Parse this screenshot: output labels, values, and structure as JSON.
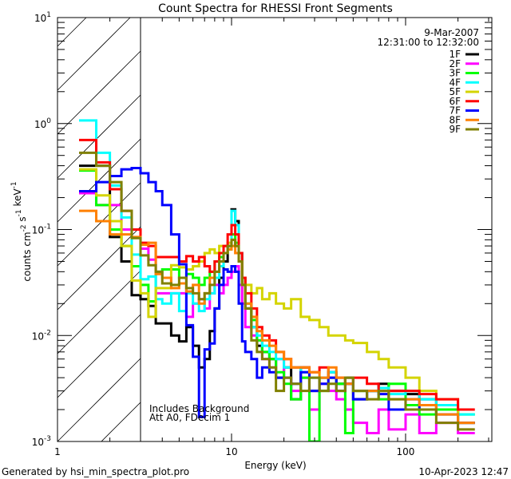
{
  "chart_data": {
    "type": "line",
    "step": true,
    "title": "Count Spectra for RHESSI Front Segments",
    "date_line": "9-Mar-2007",
    "time_line": "12:31:00 to 12:32:00",
    "xlabel": "Energy (keV)",
    "ylabel_parts": [
      {
        "text": "counts cm",
        "sup": "-2"
      },
      {
        "text": " s",
        "sup": "-1"
      },
      {
        "text": " keV",
        "sup": "-1"
      }
    ],
    "xscale": "log",
    "yscale": "log",
    "xlim": [
      1,
      313
    ],
    "ylim": [
      0.001,
      10
    ],
    "x_ticks": [
      {
        "value": 1,
        "label": "1"
      },
      {
        "value": 10,
        "label": "10"
      },
      {
        "value": 100,
        "label": "100"
      }
    ],
    "y_ticks": [
      {
        "value": 10,
        "base": "10",
        "exp": "1"
      },
      {
        "value": 1,
        "base": "10",
        "exp": "0"
      },
      {
        "value": 0.1,
        "base": "10",
        "exp": "-1"
      },
      {
        "value": 0.01,
        "base": "10",
        "exp": "-2"
      },
      {
        "value": 0.001,
        "base": "10",
        "exp": "-3"
      }
    ],
    "hatched_region_keV": [
      1,
      3
    ],
    "annotations": [
      "Includes Background",
      "Att A0, FDecim 1"
    ],
    "legend_position": "top-right",
    "energy_edges": [
      1.33,
      1.67,
      2.0,
      2.33,
      2.67,
      3.0,
      3.33,
      3.67,
      4.0,
      4.5,
      5.0,
      5.5,
      6.0,
      6.5,
      7.0,
      7.5,
      8.0,
      8.5,
      9.0,
      9.5,
      10.0,
      10.5,
      11.0,
      11.5,
      12,
      13,
      14,
      15,
      16.5,
      18,
      20,
      22,
      25,
      28,
      32,
      36,
      40,
      45,
      50,
      60,
      70,
      80,
      100,
      120,
      150,
      200,
      250
    ],
    "series": [
      {
        "name": "1F",
        "color": "#000000",
        "values": [
          0.4,
          0.4,
          0.085,
          0.05,
          0.024,
          0.022,
          0.019,
          0.013,
          0.013,
          0.01,
          0.0088,
          0.012,
          0.008,
          0.005,
          0.006,
          0.011,
          0.018,
          0.035,
          0.05,
          0.07,
          0.155,
          0.12,
          0.06,
          0.035,
          0.018,
          0.012,
          0.008,
          0.007,
          0.006,
          0.004,
          0.005,
          0.0025,
          0.005,
          0.003,
          0.004,
          0.0045,
          0.0035,
          0.004,
          0.0025,
          0.003,
          0.0035,
          0.003,
          0.0028,
          0.0025,
          0.002,
          0.0015
        ]
      },
      {
        "name": "2F",
        "color": "#ff00ff",
        "values": [
          0.22,
          0.17,
          0.17,
          0.1,
          0.1,
          0.066,
          0.052,
          0.025,
          0.025,
          0.025,
          0.025,
          0.015,
          0.02,
          0.022,
          0.018,
          0.025,
          0.03,
          0.025,
          0.03,
          0.035,
          0.04,
          0.045,
          0.03,
          0.02,
          0.012,
          0.01,
          0.009,
          0.006,
          0.005,
          0.006,
          0.004,
          0.003,
          0.004,
          0.002,
          0.0035,
          0.003,
          0.0025,
          0.002,
          0.0015,
          0.0012,
          0.002,
          0.0013,
          0.0018,
          0.0012,
          0.0015,
          0.0012
        ]
      },
      {
        "name": "3F",
        "color": "#00ff00",
        "values": [
          0.36,
          0.17,
          0.1,
          0.07,
          0.045,
          0.03,
          0.021,
          0.04,
          0.042,
          0.042,
          0.035,
          0.038,
          0.035,
          0.03,
          0.035,
          0.04,
          0.05,
          0.055,
          0.06,
          0.065,
          0.09,
          0.075,
          0.05,
          0.03,
          0.02,
          0.014,
          0.009,
          0.007,
          0.006,
          0.0045,
          0.0035,
          0.0025,
          0.004,
          0.001,
          0.003,
          0.004,
          0.0035,
          0.0012,
          0.003,
          0.003,
          0.0025,
          0.0035,
          0.0022,
          0.0018,
          0.002,
          0.0018
        ]
      },
      {
        "name": "4F",
        "color": "#00ffff",
        "values": [
          1.07,
          0.53,
          0.26,
          0.13,
          0.058,
          0.034,
          0.036,
          0.022,
          0.02,
          0.025,
          0.017,
          0.025,
          0.02,
          0.017,
          0.022,
          0.025,
          0.035,
          0.045,
          0.06,
          0.07,
          0.15,
          0.11,
          0.06,
          0.03,
          0.02,
          0.012,
          0.01,
          0.008,
          0.007,
          0.006,
          0.005,
          0.005,
          0.0045,
          0.004,
          0.004,
          0.0045,
          0.004,
          0.0035,
          0.003,
          0.003,
          0.0032,
          0.0028,
          0.003,
          0.0025,
          0.0022,
          0.0018
        ]
      },
      {
        "name": "5F",
        "color": "#d4d400",
        "values": [
          0.37,
          0.21,
          0.12,
          0.07,
          0.033,
          0.025,
          0.015,
          0.028,
          0.028,
          0.046,
          0.044,
          0.042,
          0.045,
          0.05,
          0.06,
          0.065,
          0.06,
          0.07,
          0.07,
          0.075,
          0.08,
          0.07,
          0.05,
          0.035,
          0.03,
          0.025,
          0.028,
          0.022,
          0.025,
          0.02,
          0.018,
          0.022,
          0.015,
          0.014,
          0.012,
          0.01,
          0.01,
          0.009,
          0.0085,
          0.007,
          0.006,
          0.005,
          0.004,
          0.003,
          0.0025,
          0.0015
        ]
      },
      {
        "name": "6F",
        "color": "#ff0000",
        "values": [
          0.7,
          0.43,
          0.24,
          0.15,
          0.1,
          0.075,
          0.07,
          0.055,
          0.055,
          0.055,
          0.05,
          0.056,
          0.05,
          0.055,
          0.045,
          0.04,
          0.05,
          0.06,
          0.07,
          0.09,
          0.11,
          0.09,
          0.06,
          0.035,
          0.025,
          0.018,
          0.012,
          0.01,
          0.009,
          0.007,
          0.006,
          0.005,
          0.005,
          0.0045,
          0.005,
          0.004,
          0.004,
          0.0035,
          0.004,
          0.0035,
          0.003,
          0.003,
          0.003,
          0.0028,
          0.0025,
          0.002
        ]
      },
      {
        "name": "7F",
        "color": "#0000ff",
        "values": [
          0.23,
          0.28,
          0.32,
          0.37,
          0.38,
          0.34,
          0.28,
          0.23,
          0.17,
          0.09,
          0.047,
          0.0125,
          0.0063,
          0.0017,
          0.0074,
          0.0084,
          0.018,
          0.03,
          0.042,
          0.04,
          0.045,
          0.04,
          0.02,
          0.0088,
          0.007,
          0.006,
          0.004,
          0.005,
          0.0045,
          0.004,
          0.004,
          0.0035,
          0.0045,
          0.003,
          0.0035,
          0.004,
          0.003,
          0.0035,
          0.0025,
          0.003,
          0.0028,
          0.002,
          0.0025,
          0.002,
          0.0018,
          0.0015
        ]
      },
      {
        "name": "8F",
        "color": "#ff8000",
        "values": [
          0.15,
          0.12,
          0.09,
          0.09,
          0.085,
          0.072,
          0.075,
          0.038,
          0.035,
          0.028,
          0.031,
          0.026,
          0.03,
          0.02,
          0.025,
          0.035,
          0.04,
          0.05,
          0.06,
          0.065,
          0.07,
          0.06,
          0.05,
          0.03,
          0.02,
          0.015,
          0.011,
          0.009,
          0.008,
          0.007,
          0.006,
          0.005,
          0.005,
          0.0045,
          0.004,
          0.005,
          0.004,
          0.0035,
          0.003,
          0.003,
          0.003,
          0.0025,
          0.0025,
          0.0022,
          0.0018,
          0.0015
        ]
      },
      {
        "name": "9F",
        "color": "#808000",
        "values": [
          0.53,
          0.4,
          0.28,
          0.15,
          0.083,
          0.057,
          0.046,
          0.04,
          0.031,
          0.03,
          0.035,
          0.028,
          0.025,
          0.022,
          0.025,
          0.03,
          0.04,
          0.05,
          0.06,
          0.07,
          0.08,
          0.07,
          0.05,
          0.03,
          0.018,
          0.009,
          0.007,
          0.006,
          0.005,
          0.003,
          0.004,
          0.0035,
          0.003,
          0.004,
          0.003,
          0.0035,
          0.003,
          0.004,
          0.003,
          0.0025,
          0.003,
          0.0025,
          0.002,
          0.002,
          0.0015,
          0.0013
        ]
      }
    ]
  },
  "footer": {
    "generated_by": "Generated by hsi_min_spectra_plot.pro",
    "timestamp": "10-Apr-2023 12:47"
  }
}
